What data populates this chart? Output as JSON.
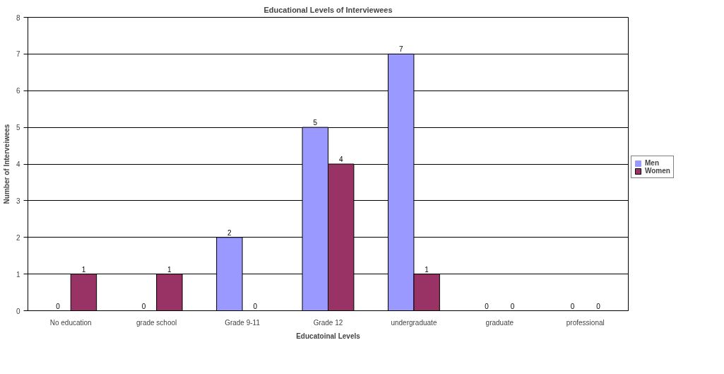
{
  "chart_data": {
    "type": "bar",
    "title": "Educational Levels of Interviewees",
    "xlabel": "Educatoinal Levels",
    "ylabel": "Number of Interveiwees",
    "categories": [
      "No education",
      "grade school",
      "Grade 9-11",
      "Grade 12",
      "undergraduate",
      "graduate",
      "professional"
    ],
    "series": [
      {
        "name": "Men",
        "color": "#9999ff",
        "values": [
          0,
          0,
          2,
          5,
          7,
          0,
          0
        ]
      },
      {
        "name": "Women",
        "color": "#993366",
        "values": [
          1,
          1,
          0,
          4,
          1,
          0,
          0
        ]
      }
    ],
    "ylim": [
      0,
      8
    ],
    "yticks": [
      0,
      1,
      2,
      3,
      4,
      5,
      6,
      7,
      8
    ],
    "grid": "y",
    "legend": "right",
    "data_labels": true
  }
}
